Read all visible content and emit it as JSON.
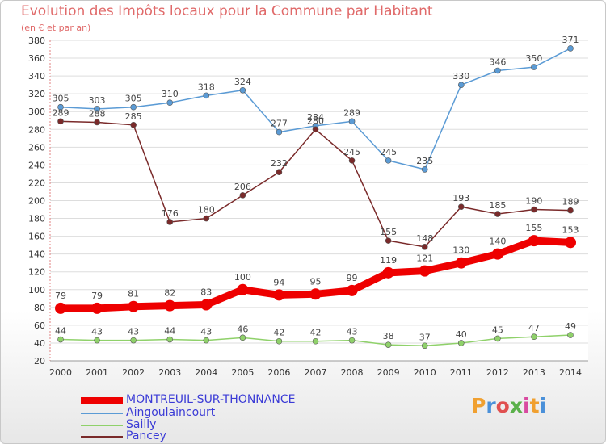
{
  "header": {
    "title": "Evolution des Impôts locaux pour la Commune par Habitant",
    "subtitle": "(en € et par an)"
  },
  "logo": {
    "text": "Proxiti"
  },
  "colors": {
    "montreuil": "#ee0000",
    "aingoulaincourt": "#5b9bd5",
    "sailly": "#8fd16a",
    "pancey": "#7a2a2a",
    "grid": "#dddddd",
    "axis_text": "#333333"
  },
  "chart_data": {
    "type": "line",
    "title": "Evolution des Impôts locaux pour la Commune par Habitant",
    "subtitle": "(en € et par an)",
    "xlabel": "",
    "ylabel": "",
    "ylim": [
      20,
      380
    ],
    "yticks": [
      20,
      40,
      60,
      80,
      100,
      120,
      140,
      160,
      180,
      200,
      220,
      240,
      260,
      280,
      300,
      320,
      340,
      360,
      380
    ],
    "grid": true,
    "legend_position": "bottom-left",
    "categories": [
      "2000",
      "2001",
      "2002",
      "2003",
      "2004",
      "2005",
      "2006",
      "2007",
      "2008",
      "2009",
      "2010",
      "2011",
      "2012",
      "2013",
      "2014"
    ],
    "series": [
      {
        "name": "Aingoulaincourt",
        "key": "aingoulaincourt",
        "values": [
          305,
          303,
          305,
          310,
          318,
          324,
          277,
          284,
          289,
          245,
          235,
          330,
          346,
          350,
          371
        ]
      },
      {
        "name": "Pancey",
        "key": "pancey",
        "values": [
          289,
          288,
          285,
          176,
          180,
          206,
          232,
          280,
          245,
          155,
          148,
          193,
          185,
          190,
          189
        ]
      },
      {
        "name": "Sailly",
        "key": "sailly",
        "values": [
          44,
          43,
          43,
          44,
          43,
          46,
          42,
          42,
          43,
          38,
          37,
          40,
          45,
          47,
          49
        ]
      },
      {
        "name": "MONTREUIL-SUR-THONNANCE",
        "key": "montreuil",
        "values": [
          79,
          79,
          81,
          82,
          83,
          100,
          94,
          95,
          99,
          119,
          121,
          130,
          140,
          155,
          153
        ]
      }
    ]
  },
  "legend": [
    {
      "label": "MONTREUIL-SUR-THONNANCE",
      "key": "montreuil"
    },
    {
      "label": "Aingoulaincourt",
      "key": "aingoulaincourt"
    },
    {
      "label": "Sailly",
      "key": "sailly"
    },
    {
      "label": "Pancey",
      "key": "pancey"
    }
  ]
}
